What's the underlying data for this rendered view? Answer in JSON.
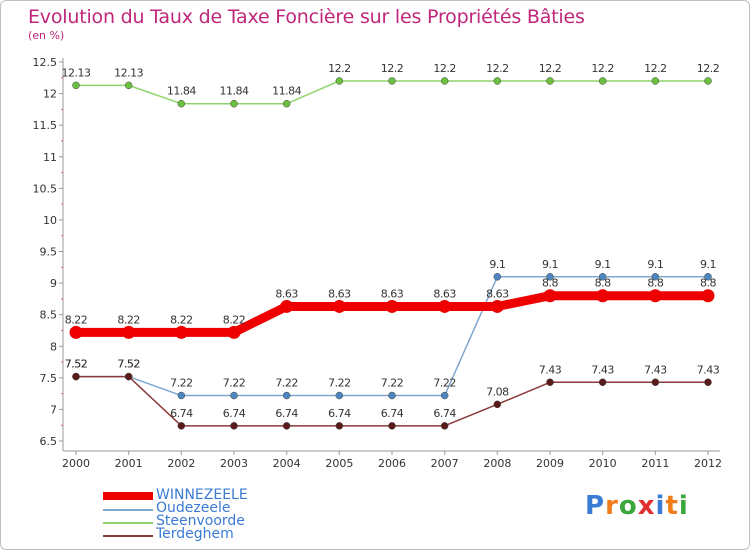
{
  "title": "Evolution du Taux de Taxe Foncière sur les Propriétés Bâties",
  "unit": "(en %)",
  "logo": {
    "letters": [
      "P",
      "r",
      "o",
      "x",
      "i",
      "t",
      "i"
    ],
    "colors": [
      "#3a7bd5",
      "#f07d1a",
      "#3aa83a",
      "#e03030",
      "#3a7bd5",
      "#f07d1a",
      "#3aa83a"
    ]
  },
  "chart_data": {
    "type": "line",
    "title": "Evolution du Taux de Taxe Foncière sur les Propriétés Bâties",
    "ylabel": "(en %)",
    "xlabel": "",
    "ylim": [
      6.5,
      12.5
    ],
    "yticks": [
      "6.5",
      "7",
      "7.5",
      "8",
      "8.5",
      "9",
      "9.5",
      "10",
      "10.5",
      "11",
      "11.5",
      "12",
      "12.5"
    ],
    "yticks_values": [
      6.5,
      7,
      7.5,
      8,
      8.5,
      9,
      9.5,
      10,
      10.5,
      11,
      11.5,
      12,
      12.5
    ],
    "categories": [
      "2000",
      "2001",
      "2002",
      "2003",
      "2004",
      "2005",
      "2006",
      "2007",
      "2008",
      "2009",
      "2010",
      "2011",
      "2012"
    ],
    "grid": false,
    "legend": "bottom-left",
    "series": [
      {
        "name": "Steenvoorde",
        "color": "#8fd46c",
        "marker": "#6cc040",
        "values": [
          12.13,
          12.13,
          11.84,
          11.84,
          11.84,
          12.2,
          12.2,
          12.2,
          12.2,
          12.2,
          12.2,
          12.2,
          12.2
        ],
        "labels": [
          "12.13",
          "12.13",
          "11.84",
          "11.84",
          "11.84",
          "12.2",
          "12.2",
          "12.2",
          "12.2",
          "12.2",
          "12.2",
          "12.2",
          "12.2"
        ]
      },
      {
        "name": "Oudezeele",
        "color": "#7fa8d0",
        "marker": "#4d86c0",
        "values": [
          7.52,
          7.52,
          7.22,
          7.22,
          7.22,
          7.22,
          7.22,
          7.22,
          9.1,
          9.1,
          9.1,
          9.1,
          9.1
        ],
        "labels": [
          "7.52",
          "7.52",
          "7.22",
          "7.22",
          "7.22",
          "7.22",
          "7.22",
          "7.22",
          "9.1",
          "9.1",
          "9.1",
          "9.1",
          "9.1"
        ]
      },
      {
        "name": "Terdeghem",
        "color": "#8a3a3a",
        "marker": "#5a1a1a",
        "values": [
          7.52,
          7.52,
          6.74,
          6.74,
          6.74,
          6.74,
          6.74,
          6.74,
          7.08,
          7.43,
          7.43,
          7.43,
          7.43
        ],
        "labels": [
          "7.52",
          "7.52",
          "6.74",
          "6.74",
          "6.74",
          "6.74",
          "6.74",
          "6.74",
          "7.08",
          "7.43",
          "7.43",
          "7.43",
          "7.43"
        ]
      },
      {
        "name": "WINNEZEELE",
        "color": "#ee0000",
        "marker": "#ee0000",
        "values": [
          8.22,
          8.22,
          8.22,
          8.22,
          8.63,
          8.63,
          8.63,
          8.63,
          8.63,
          8.8,
          8.8,
          8.8,
          8.8
        ],
        "labels": [
          "8.22",
          "8.22",
          "8.22",
          "8.22",
          "8.63",
          "8.63",
          "8.63",
          "8.63",
          "8.63",
          "8.8",
          "8.8",
          "8.8",
          "8.8"
        ]
      }
    ],
    "legend_order": [
      "WINNEZEELE",
      "Oudezeele",
      "Steenvoorde",
      "Terdeghem"
    ]
  }
}
